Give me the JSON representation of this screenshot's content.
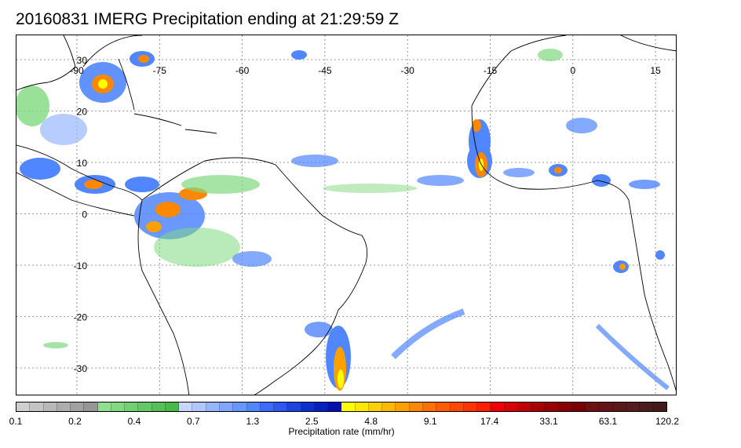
{
  "title": "20160831 IMERG Precipitation ending at 21:29:59 Z",
  "map": {
    "lon_labels": [
      "-90",
      "-75",
      "-60",
      "-45",
      "-30",
      "-15",
      "0",
      "15"
    ],
    "lat_labels": [
      "30",
      "20",
      "10",
      "0",
      "-10",
      "-20",
      "-30"
    ],
    "grid": "dotted",
    "land_fill": "#ffffff",
    "coastline_color": "#000000"
  },
  "colorbar": {
    "title": "Precipitation rate (mm/hr)",
    "tick_labels": [
      "0.1",
      "0.2",
      "0.4",
      "0.7",
      "1.3",
      "2.5",
      "4.8",
      "9.1",
      "17.4",
      "33.1",
      "63.1",
      "120.2"
    ],
    "colors": [
      "#cfcfcf",
      "#c4c4c4",
      "#b8b8b8",
      "#adadad",
      "#a1a1a1",
      "#969696",
      "#8ee08e",
      "#80d880",
      "#72d072",
      "#64c864",
      "#56c056",
      "#48b848",
      "#c8d6ff",
      "#b0c6ff",
      "#98b6ff",
      "#80a6ff",
      "#6896ff",
      "#5086ff",
      "#3c6cff",
      "#2c58f0",
      "#1c44e0",
      "#0c30d0",
      "#0620c0",
      "#0010b0",
      "#ffff00",
      "#ffe800",
      "#ffd000",
      "#ffb800",
      "#ffa000",
      "#ff8800",
      "#ff7000",
      "#ff5c00",
      "#ff4800",
      "#ff3400",
      "#ff2000",
      "#f00000",
      "#d80000",
      "#c00000",
      "#a80000",
      "#980000",
      "#880000",
      "#780000",
      "#6c1010",
      "#641414",
      "#5c1818",
      "#541c1c",
      "#4c1c1c",
      "#441a1a"
    ]
  }
}
